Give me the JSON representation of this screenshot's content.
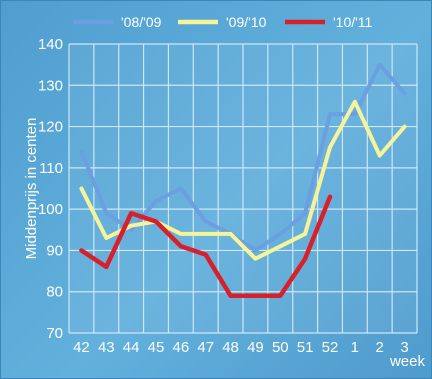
{
  "chart_data": {
    "type": "line",
    "xlabel": "week",
    "ylabel": "Middenprijs in centen",
    "categories": [
      "42",
      "43",
      "44",
      "45",
      "46",
      "47",
      "48",
      "49",
      "50",
      "51",
      "52",
      "1",
      "2",
      "3"
    ],
    "ylim": [
      70,
      140
    ],
    "yticks": [
      70,
      80,
      90,
      100,
      110,
      120,
      130,
      140
    ],
    "grid": true,
    "legend_position": "top",
    "series": [
      {
        "name": "'08/'09",
        "color": "#6b9fe0",
        "values": [
          114,
          99,
          95,
          102,
          105,
          97,
          94,
          90,
          94,
          99,
          123,
          123,
          135,
          128
        ]
      },
      {
        "name": "'09/'10",
        "color": "#f6f49a",
        "values": [
          105,
          93,
          96,
          97,
          94,
          94,
          94,
          88,
          91,
          94,
          115,
          126,
          113,
          120
        ]
      },
      {
        "name": "'10/'11",
        "color": "#d8202a",
        "values": [
          90,
          86,
          99,
          97,
          91,
          89,
          79,
          79,
          79,
          88,
          103,
          null,
          null,
          null
        ]
      }
    ]
  }
}
